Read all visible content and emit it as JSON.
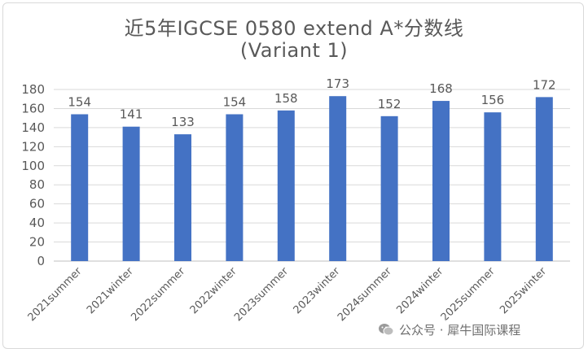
{
  "chart_data": {
    "type": "bar",
    "title": "近5年IGCSE 0580 extend A*分数线",
    "subtitle": "(Variant 1)",
    "categories": [
      "2021summer",
      "2021winter",
      "2022summer",
      "2022winter",
      "2023summer",
      "2023winter",
      "2024summer",
      "2024winter",
      "2025summer",
      "2025winter"
    ],
    "values": [
      154,
      141,
      133,
      154,
      158,
      173,
      152,
      168,
      156,
      172
    ],
    "xlabel": "",
    "ylabel": "",
    "ylim": [
      0,
      180
    ],
    "yticks": [
      0,
      20,
      40,
      60,
      80,
      100,
      120,
      140,
      160,
      180
    ],
    "grid": true,
    "legend": "none",
    "bar_color": "#4472C4",
    "grid_color": "#d9d9d9",
    "text_color": "#595959"
  },
  "watermark": {
    "icon": "wechat-icon",
    "text": "公众号 · 犀牛国际课程"
  }
}
